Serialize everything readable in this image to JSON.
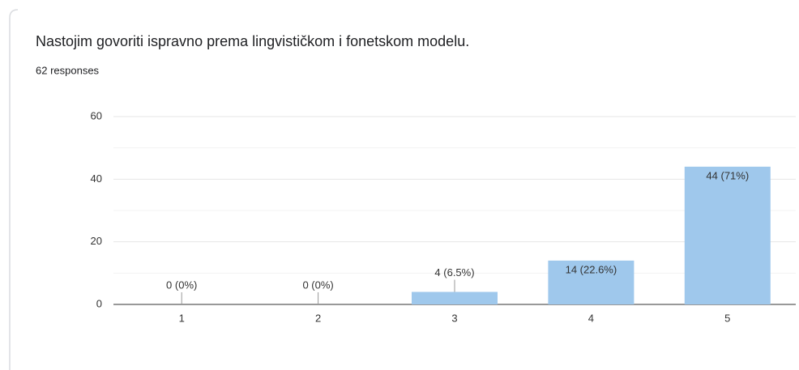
{
  "chart_data": {
    "type": "bar",
    "title": "Nastojim govoriti ispravno prema lingvističkom i fonetskom modelu.",
    "subtitle": "62 responses",
    "categories": [
      "1",
      "2",
      "3",
      "4",
      "5"
    ],
    "values": [
      0,
      0,
      4,
      14,
      44
    ],
    "value_labels": [
      "0 (0%)",
      "0 (0%)",
      "4 (6.5%)",
      "14 (22.6%)",
      "44 (71%)"
    ],
    "color": "#9fc8ec",
    "ylim": [
      0,
      60
    ],
    "yticks": [
      0,
      20,
      40,
      60
    ],
    "yminorticks": [
      10,
      30,
      50
    ],
    "grid": true
  }
}
